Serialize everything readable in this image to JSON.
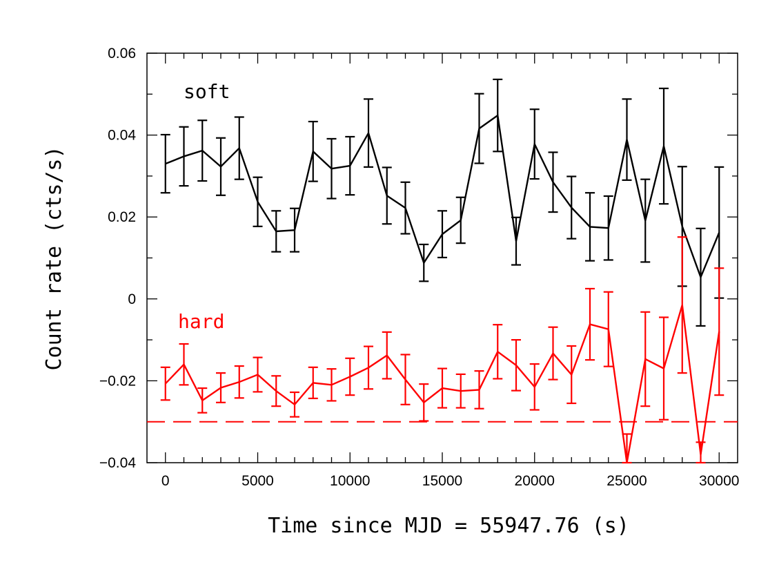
{
  "chart_data": {
    "type": "line",
    "xlabel": "Time since MJD = 55947.76 (s)",
    "ylabel": "Count rate (cts/s)",
    "xlim": [
      -1000,
      31000
    ],
    "ylim": [
      -0.04,
      0.06
    ],
    "x_ticks": [
      0,
      5000,
      10000,
      15000,
      20000,
      25000,
      30000
    ],
    "x_tick_labels": [
      "0",
      "5000",
      "10000",
      "15000",
      "20000",
      "25000",
      "30000"
    ],
    "y_ticks": [
      -0.04,
      -0.02,
      0,
      0.02,
      0.04,
      0.06
    ],
    "y_tick_labels": [
      "−0.04",
      "−0.02",
      "0",
      "0.02",
      "0.04",
      "0.06"
    ],
    "grid": false,
    "x": [
      0,
      1000,
      2000,
      3000,
      4000,
      5000,
      6000,
      7000,
      8000,
      9000,
      10000,
      11000,
      12000,
      13000,
      14000,
      15000,
      16000,
      17000,
      18000,
      19000,
      20000,
      21000,
      22000,
      23000,
      24000,
      25000,
      26000,
      27000,
      28000,
      29000,
      30000
    ],
    "series": [
      {
        "name": "soft",
        "color": "#000000",
        "values": [
          0.033,
          0.0348,
          0.0362,
          0.0323,
          0.0368,
          0.0237,
          0.0165,
          0.0168,
          0.036,
          0.0318,
          0.0325,
          0.0405,
          0.0252,
          0.0222,
          0.0088,
          0.0158,
          0.0192,
          0.0416,
          0.0448,
          0.0141,
          0.0378,
          0.0285,
          0.0223,
          0.0176,
          0.0173,
          0.0389,
          0.0191,
          0.0373,
          0.0177,
          0.0053,
          0.0162
        ],
        "errors": [
          0.0071,
          0.0072,
          0.0074,
          0.007,
          0.0076,
          0.006,
          0.005,
          0.0053,
          0.0073,
          0.0073,
          0.0071,
          0.0083,
          0.0069,
          0.0063,
          0.0045,
          0.0057,
          0.0056,
          0.0085,
          0.0088,
          0.0058,
          0.0085,
          0.0073,
          0.0076,
          0.0083,
          0.0078,
          0.0099,
          0.0101,
          0.0141,
          0.0146,
          0.0119,
          0.016
        ]
      },
      {
        "name": "hard",
        "color": "#ff0000",
        "values": [
          -0.0207,
          -0.016,
          -0.0248,
          -0.0217,
          -0.0203,
          -0.0185,
          -0.0225,
          -0.0258,
          -0.0205,
          -0.021,
          -0.019,
          -0.0168,
          -0.0138,
          -0.0197,
          -0.0253,
          -0.0218,
          -0.0225,
          -0.0222,
          -0.0129,
          -0.0162,
          -0.0215,
          -0.0133,
          -0.0185,
          -0.0062,
          -0.0074,
          -0.04,
          -0.0147,
          -0.017,
          -0.0015,
          -0.038,
          -0.008
        ],
        "errors": [
          0.004,
          0.005,
          0.003,
          0.0036,
          0.0039,
          0.0042,
          0.0037,
          0.003,
          0.0038,
          0.0039,
          0.0045,
          0.0052,
          0.0057,
          0.0061,
          0.0045,
          0.0048,
          0.0041,
          0.0046,
          0.0066,
          0.0062,
          0.0056,
          0.0064,
          0.007,
          0.0087,
          0.0091,
          0.007,
          0.0115,
          0.0125,
          0.0166,
          0.003,
          0.0155
        ]
      }
    ],
    "reference_line": {
      "y": -0.03,
      "color": "#ff0000",
      "style": "dashed"
    }
  }
}
